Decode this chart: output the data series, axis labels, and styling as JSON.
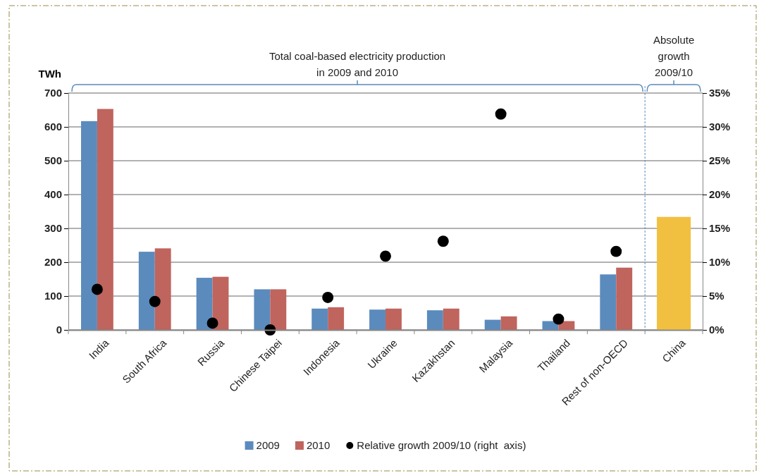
{
  "chart_data": {
    "type": "bar",
    "ylabel": "TWh",
    "categories": [
      "India",
      "South Africa",
      "Russia",
      "Chinese Taipei",
      "Indonesia",
      "Ukraine",
      "Kazakhstan",
      "Malaysia",
      "Thailand",
      "Rest of non-OECD",
      "China"
    ],
    "series": [
      {
        "name": "2009",
        "color": "#5b8bbd",
        "values": [
          617,
          231,
          154,
          120,
          63,
          60,
          58,
          30,
          26,
          164,
          null
        ]
      },
      {
        "name": "2010",
        "color": "#c0645e",
        "values": [
          653,
          241,
          157,
          120,
          67,
          63,
          63,
          40,
          26,
          184,
          null
        ]
      },
      {
        "color": "#f2c040",
        "values": [
          null,
          null,
          null,
          null,
          null,
          null,
          null,
          null,
          null,
          null,
          334
        ]
      },
      {
        "name": "Relative growth 2009/10 (right  axis)",
        "type": "scatter",
        "axis": "y2",
        "color": "#000000",
        "marker": "circle",
        "values": [
          6.0,
          4.2,
          1.0,
          0,
          4.8,
          10.9,
          13.1,
          31.9,
          1.6,
          11.6,
          null
        ]
      }
    ],
    "ylim": [
      0,
      700
    ],
    "yticks": [
      0,
      100,
      200,
      300,
      400,
      500,
      600,
      700
    ],
    "y2lim": [
      0,
      35
    ],
    "y2ticks": [
      {
        "value": 0,
        "label": "0%"
      },
      {
        "value": 5,
        "label": "5%"
      },
      {
        "value": 10,
        "label": "10%"
      },
      {
        "value": 15,
        "label": "15%"
      },
      {
        "value": 20,
        "label": "20%"
      },
      {
        "value": 25,
        "label": "25%"
      },
      {
        "value": 30,
        "label": "30%"
      },
      {
        "value": 35,
        "label": "35%"
      }
    ],
    "annotations": [
      "Total coal-based electricity production\nin 2009 and 2010",
      "Absolute\ngrowth\n2009/10"
    ],
    "ref_lines": [
      {
        "axis": "x",
        "value": "China",
        "color": "#5b8bbd",
        "line_style": "dotted"
      }
    ],
    "grid": "y",
    "legend": "bottom"
  }
}
